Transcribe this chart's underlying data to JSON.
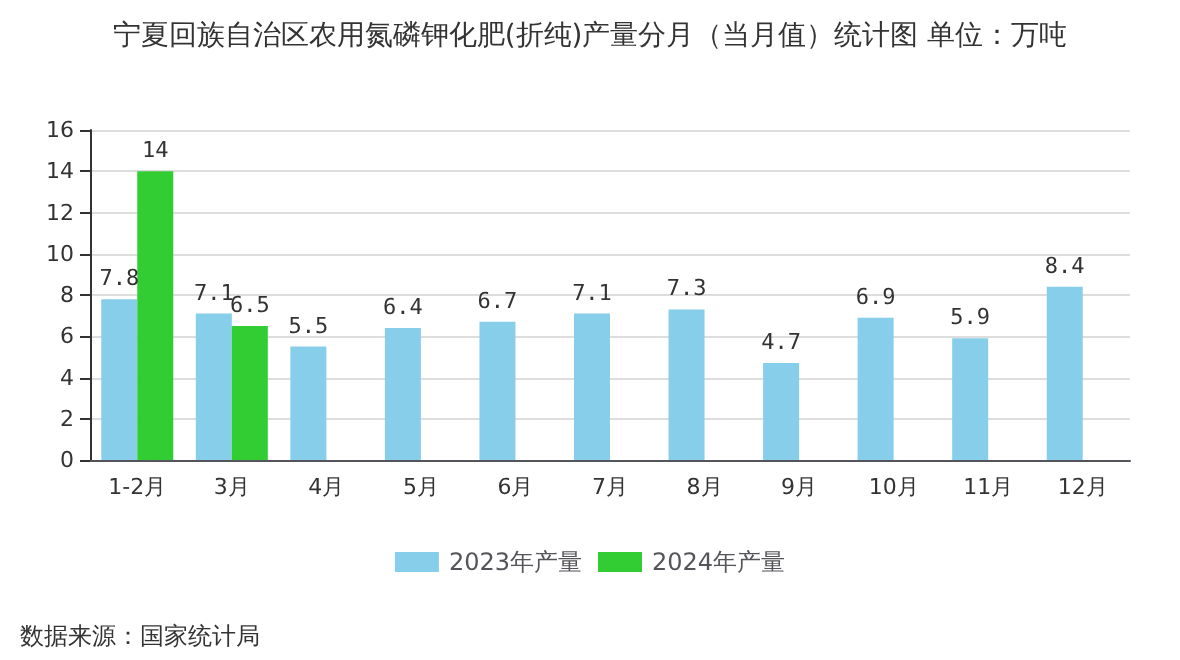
{
  "chart_data": {
    "type": "bar",
    "title": "宁夏回族自治区农用氮磷钾化肥(折纯)产量分月（当月值）统计图 单位：万吨",
    "categories": [
      "1-2月",
      "3月",
      "4月",
      "5月",
      "6月",
      "7月",
      "8月",
      "9月",
      "10月",
      "11月",
      "12月"
    ],
    "series": [
      {
        "name": "2023年产量",
        "color": "#87ceeb",
        "values": [
          7.8,
          7.1,
          5.5,
          6.4,
          6.7,
          7.1,
          7.3,
          4.7,
          6.9,
          5.9,
          8.4
        ]
      },
      {
        "name": "2024年产量",
        "color": "#32cd32",
        "values": [
          14,
          6.5,
          null,
          null,
          null,
          null,
          null,
          null,
          null,
          null,
          null
        ]
      }
    ],
    "ylim": [
      0,
      16
    ],
    "yticks": [
      0,
      2,
      4,
      6,
      8,
      10,
      12,
      14,
      16
    ],
    "grid": "y",
    "legend": "bottom",
    "data_labels": true,
    "annotations": [
      "数据来源：国家统计局"
    ]
  }
}
